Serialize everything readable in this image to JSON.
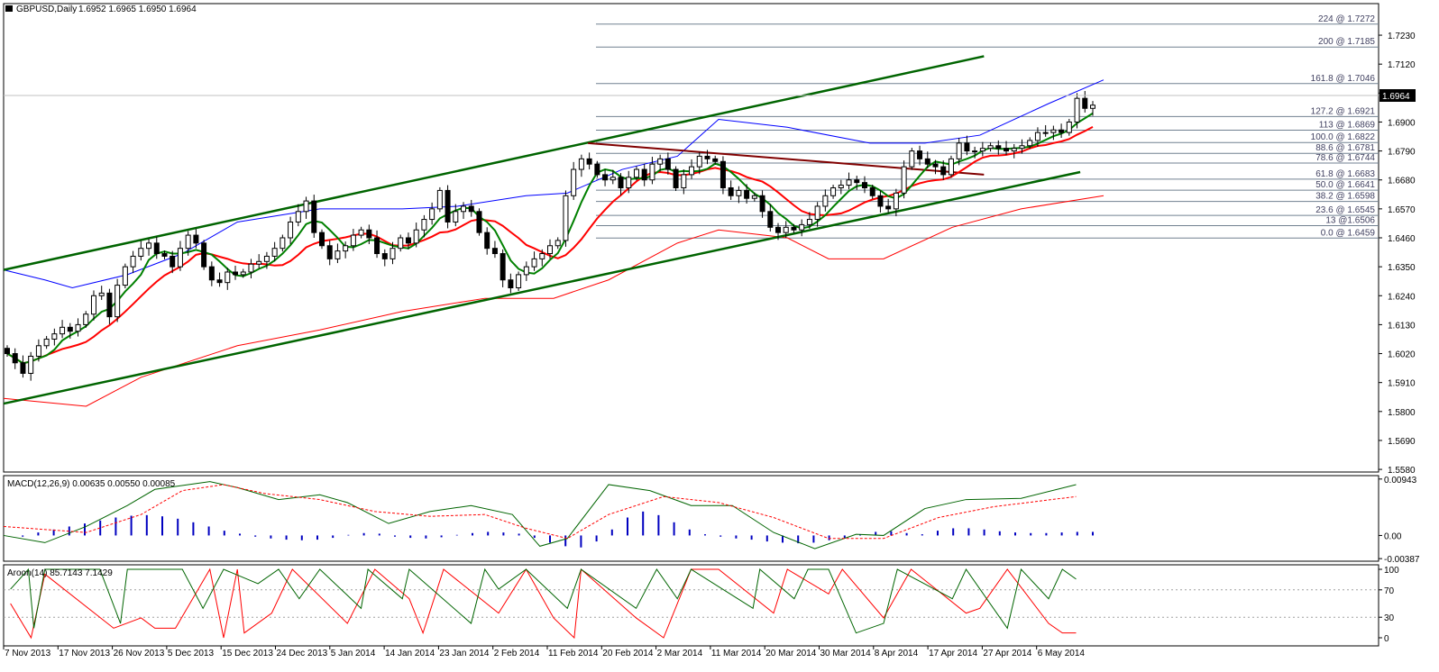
{
  "header": {
    "symbol": "GBPUSD,Daily",
    "ohlc": "1.6952 1.6965 1.6950 1.6964"
  },
  "current_price_label": "1.6964",
  "colors": {
    "channel": "#006400",
    "bollinger_upper": "#0000ff",
    "bollinger_lower": "#ff0000",
    "ma_fast": "#008000",
    "ma_slow": "#ff0000",
    "ma_flat": "#ffff00",
    "trendline_resistance": "#800000",
    "fib_lines": "#708090",
    "macd_histogram": "#0000c0",
    "macd_main": "#006400",
    "macd_signal": "#ff0000",
    "aroon_up": "#006400",
    "aroon_down": "#ff0000"
  },
  "chart_data": [
    {
      "type": "candlestick",
      "panel": "price",
      "y_ticks": [
        "1.7230",
        "1.7120",
        "1.7010",
        "1.6900",
        "1.6790",
        "1.6680",
        "1.6570",
        "1.6460",
        "1.6350",
        "1.6240",
        "1.6130",
        "1.6020",
        "1.5910",
        "1.5800",
        "1.5690",
        "1.5580"
      ],
      "ylim": [
        1.557,
        1.735
      ],
      "x_labels": [
        "7 Nov 2013",
        "17 Nov 2013",
        "26 Nov 2013",
        "5 Dec 2013",
        "15 Dec 2013",
        "24 Dec 2013",
        "5 Jan 2014",
        "14 Jan 2014",
        "23 Jan 2014",
        "2 Feb 2014",
        "11 Feb 2014",
        "20 Feb 2014",
        "2 Mar 2014",
        "11 Mar 2014",
        "20 Mar 2014",
        "30 Mar 2014",
        "8 Apr 2014",
        "17 Apr 2014",
        "27 Apr 2014",
        "6 May 2014"
      ],
      "fibonacci_levels": [
        {
          "label": "224 @ 1.7272",
          "value": 1.7272
        },
        {
          "label": "200 @ 1.7185",
          "value": 1.7185
        },
        {
          "label": "161.8 @ 1.7046",
          "value": 1.7046
        },
        {
          "label": "127.2 @ 1.6921",
          "value": 1.6921
        },
        {
          "label": "113 @ 1.6869",
          "value": 1.6869
        },
        {
          "label": "100.0 @ 1.6822",
          "value": 1.6822
        },
        {
          "label": "88.6 @ 1.6781",
          "value": 1.6781
        },
        {
          "label": "78.6 @ 1.6744",
          "value": 1.6744
        },
        {
          "label": "61.8 @ 1.6683",
          "value": 1.6683
        },
        {
          "label": "50.0 @ 1.6641",
          "value": 1.6641
        },
        {
          "label": "38.2 @ 1.6598",
          "value": 1.6598
        },
        {
          "label": "23.6 @ 1.6545",
          "value": 1.6545
        },
        {
          "label": "13 @1.6506",
          "value": 1.6506
        },
        {
          "label": "0.0 @ 1.6459",
          "value": 1.6459
        }
      ],
      "current_price": 1.6964,
      "closes": [
        1.602,
        1.5985,
        1.5945,
        1.601,
        1.605,
        1.6075,
        1.6095,
        1.612,
        1.6105,
        1.613,
        1.617,
        1.624,
        1.625,
        1.616,
        1.628,
        1.635,
        1.639,
        1.642,
        1.644,
        1.64,
        1.639,
        1.635,
        1.642,
        1.647,
        1.644,
        1.635,
        1.63,
        1.629,
        1.633,
        1.632,
        1.633,
        1.636,
        1.637,
        1.639,
        1.642,
        1.646,
        1.652,
        1.656,
        1.66,
        1.648,
        1.643,
        1.638,
        1.641,
        1.643,
        1.647,
        1.649,
        1.646,
        1.64,
        1.638,
        1.642,
        1.646,
        1.644,
        1.649,
        1.653,
        1.657,
        1.664,
        1.652,
        1.656,
        1.658,
        1.656,
        1.648,
        1.642,
        1.64,
        1.63,
        1.627,
        1.632,
        1.635,
        1.638,
        1.64,
        1.643,
        1.645,
        1.662,
        1.672,
        1.676,
        1.674,
        1.67,
        1.668,
        1.669,
        1.665,
        1.669,
        1.672,
        1.668,
        1.674,
        1.676,
        1.672,
        1.665,
        1.67,
        1.673,
        1.677,
        1.676,
        1.675,
        1.665,
        1.662,
        1.664,
        1.661,
        1.662,
        1.656,
        1.65,
        1.648,
        1.65,
        1.649,
        1.651,
        1.653,
        1.658,
        1.662,
        1.665,
        1.666,
        1.668,
        1.667,
        1.665,
        1.662,
        1.658,
        1.657,
        1.663,
        1.673,
        1.679,
        1.676,
        1.674,
        1.673,
        1.67,
        1.676,
        1.682,
        1.679,
        1.679,
        1.68,
        1.681,
        1.68,
        1.679,
        1.68,
        1.681,
        1.683,
        1.686,
        1.686,
        1.687,
        1.686,
        1.69,
        1.699,
        1.6952,
        1.6964
      ],
      "bollinger_upper_pts": [
        [
          0,
          1.6338
        ],
        [
          0.03,
          1.63
        ],
        [
          0.05,
          1.627
        ],
        [
          0.09,
          1.632
        ],
        [
          0.13,
          1.64
        ],
        [
          0.17,
          1.652
        ],
        [
          0.23,
          1.657
        ],
        [
          0.29,
          1.657
        ],
        [
          0.33,
          1.658
        ],
        [
          0.38,
          1.662
        ],
        [
          0.41,
          1.663
        ],
        [
          0.45,
          1.672
        ],
        [
          0.49,
          1.677
        ],
        [
          0.52,
          1.691
        ],
        [
          0.57,
          1.688
        ],
        [
          0.63,
          1.682
        ],
        [
          0.67,
          1.682
        ],
        [
          0.71,
          1.685
        ],
        [
          0.76,
          1.697
        ],
        [
          0.8,
          1.706
        ]
      ],
      "bollinger_lower_pts": [
        [
          0,
          1.585
        ],
        [
          0.06,
          1.582
        ],
        [
          0.1,
          1.593
        ],
        [
          0.17,
          1.605
        ],
        [
          0.23,
          1.611
        ],
        [
          0.29,
          1.618
        ],
        [
          0.35,
          1.623
        ],
        [
          0.4,
          1.623
        ],
        [
          0.44,
          1.63
        ],
        [
          0.49,
          1.644
        ],
        [
          0.52,
          1.649
        ],
        [
          0.57,
          1.646
        ],
        [
          0.6,
          1.638
        ],
        [
          0.64,
          1.638
        ],
        [
          0.69,
          1.65
        ],
        [
          0.74,
          1.657
        ],
        [
          0.8,
          1.662
        ]
      ],
      "channel_upper": [
        [
          0,
          1.6338
        ],
        [
          0.713,
          1.715
        ]
      ],
      "channel_lower": [
        [
          0,
          1.583
        ],
        [
          0.783,
          1.671
        ]
      ],
      "resistance_line": [
        [
          0.425,
          1.682
        ],
        [
          0.713,
          1.67
        ]
      ]
    },
    {
      "type": "line",
      "panel": "macd",
      "title": "MACD(12,26,9) 0.00635 0.00550 0.00085",
      "y_ticks": [
        "0.00943",
        "0.00",
        "-0.00387"
      ],
      "ylim": [
        -0.0043,
        0.01
      ],
      "histogram": [
        0.0,
        -0.0002,
        0.0005,
        0.001,
        0.0015,
        0.002,
        0.0025,
        0.003,
        0.0033,
        0.0034,
        0.0032,
        0.0028,
        0.0022,
        0.0015,
        0.0008,
        0.0003,
        -0.0002,
        -0.0005,
        -0.0007,
        -0.0008,
        -0.0007,
        -0.0004,
        0.0001,
        0.0004,
        0.0003,
        -0.0002,
        -0.0004,
        -0.0005,
        -0.0003,
        0.0001,
        0.0004,
        0.0006,
        0.0005,
        0.0003,
        -0.0004,
        -0.0012,
        -0.0018,
        -0.002,
        -0.001,
        0.001,
        0.003,
        0.004,
        0.0034,
        0.0022,
        0.001,
        0.0002,
        -0.0002,
        -0.0005,
        -0.0007,
        -0.001,
        -0.0012,
        -0.0013,
        -0.0012,
        -0.0008,
        -0.0004,
        0.0002,
        0.0006,
        0.0007,
        0.0004,
        0.0002,
        0.0008,
        0.0012,
        0.0012,
        0.001,
        0.0007,
        0.0005,
        0.0004,
        0.0004,
        0.0005,
        0.0006,
        0.0006
      ],
      "main_line": [
        [
          0,
          0.0
        ],
        [
          0.03,
          -0.0012
        ],
        [
          0.06,
          0.0015
        ],
        [
          0.09,
          0.005
        ],
        [
          0.11,
          0.0077
        ],
        [
          0.15,
          0.009
        ],
        [
          0.17,
          0.008
        ],
        [
          0.2,
          0.006
        ],
        [
          0.23,
          0.0068
        ],
        [
          0.25,
          0.0055
        ],
        [
          0.28,
          0.002
        ],
        [
          0.31,
          0.004
        ],
        [
          0.34,
          0.005
        ],
        [
          0.37,
          0.0035
        ],
        [
          0.39,
          -0.0018
        ],
        [
          0.41,
          -0.0005
        ],
        [
          0.44,
          0.0085
        ],
        [
          0.47,
          0.0075
        ],
        [
          0.5,
          0.005
        ],
        [
          0.53,
          0.005
        ],
        [
          0.56,
          0.0005
        ],
        [
          0.59,
          -0.0022
        ],
        [
          0.62,
          0.0002
        ],
        [
          0.64,
          0.0
        ],
        [
          0.67,
          0.0045
        ],
        [
          0.7,
          0.006
        ],
        [
          0.74,
          0.0062
        ],
        [
          0.78,
          0.0085
        ]
      ],
      "signal_line": [
        [
          0,
          0.0015
        ],
        [
          0.06,
          0.0005
        ],
        [
          0.1,
          0.0035
        ],
        [
          0.13,
          0.0075
        ],
        [
          0.16,
          0.0085
        ],
        [
          0.19,
          0.007
        ],
        [
          0.23,
          0.006
        ],
        [
          0.27,
          0.004
        ],
        [
          0.31,
          0.0032
        ],
        [
          0.35,
          0.0035
        ],
        [
          0.38,
          0.0012
        ],
        [
          0.41,
          -0.0005
        ],
        [
          0.44,
          0.0035
        ],
        [
          0.48,
          0.0065
        ],
        [
          0.52,
          0.0055
        ],
        [
          0.56,
          0.003
        ],
        [
          0.6,
          -0.0005
        ],
        [
          0.64,
          -0.0005
        ],
        [
          0.68,
          0.003
        ],
        [
          0.72,
          0.0048
        ],
        [
          0.78,
          0.0065
        ]
      ]
    },
    {
      "type": "line",
      "panel": "aroon",
      "title": "Aroon(14) 85.7143 7.1429",
      "y_ticks": [
        "100",
        "70",
        "30",
        "0"
      ],
      "ylim": [
        0,
        100
      ],
      "aroon_up": [
        [
          0.005,
          71
        ],
        [
          0.018,
          100
        ],
        [
          0.022,
          14
        ],
        [
          0.03,
          100
        ],
        [
          0.07,
          100
        ],
        [
          0.085,
          21
        ],
        [
          0.09,
          100
        ],
        [
          0.13,
          100
        ],
        [
          0.145,
          43
        ],
        [
          0.16,
          100
        ],
        [
          0.185,
          79
        ],
        [
          0.2,
          100
        ],
        [
          0.215,
          57
        ],
        [
          0.23,
          100
        ],
        [
          0.26,
          43
        ],
        [
          0.265,
          100
        ],
        [
          0.29,
          57
        ],
        [
          0.295,
          100
        ],
        [
          0.34,
          21
        ],
        [
          0.35,
          100
        ],
        [
          0.36,
          71
        ],
        [
          0.38,
          100
        ],
        [
          0.41,
          43
        ],
        [
          0.42,
          100
        ],
        [
          0.46,
          43
        ],
        [
          0.475,
          100
        ],
        [
          0.49,
          57
        ],
        [
          0.5,
          100
        ],
        [
          0.545,
          43
        ],
        [
          0.55,
          100
        ],
        [
          0.575,
          57
        ],
        [
          0.585,
          100
        ],
        [
          0.6,
          100
        ],
        [
          0.62,
          7
        ],
        [
          0.64,
          21
        ],
        [
          0.65,
          100
        ],
        [
          0.69,
          57
        ],
        [
          0.7,
          100
        ],
        [
          0.73,
          14
        ],
        [
          0.74,
          100
        ],
        [
          0.76,
          57
        ],
        [
          0.77,
          100
        ],
        [
          0.78,
          85.7
        ]
      ],
      "aroon_down": [
        [
          0.005,
          50
        ],
        [
          0.02,
          0
        ],
        [
          0.03,
          93
        ],
        [
          0.08,
          14
        ],
        [
          0.1,
          29
        ],
        [
          0.11,
          14
        ],
        [
          0.125,
          14
        ],
        [
          0.15,
          100
        ],
        [
          0.16,
          0
        ],
        [
          0.17,
          100
        ],
        [
          0.175,
          7
        ],
        [
          0.195,
          36
        ],
        [
          0.21,
          100
        ],
        [
          0.25,
          21
        ],
        [
          0.27,
          100
        ],
        [
          0.295,
          57
        ],
        [
          0.305,
          7
        ],
        [
          0.32,
          100
        ],
        [
          0.36,
          36
        ],
        [
          0.38,
          100
        ],
        [
          0.4,
          29
        ],
        [
          0.415,
          0
        ],
        [
          0.42,
          100
        ],
        [
          0.46,
          29
        ],
        [
          0.48,
          0
        ],
        [
          0.5,
          100
        ],
        [
          0.52,
          100
        ],
        [
          0.56,
          36
        ],
        [
          0.57,
          100
        ],
        [
          0.6,
          64
        ],
        [
          0.61,
          100
        ],
        [
          0.64,
          29
        ],
        [
          0.66,
          100
        ],
        [
          0.7,
          36
        ],
        [
          0.71,
          43
        ],
        [
          0.73,
          100
        ],
        [
          0.76,
          21
        ],
        [
          0.77,
          7
        ],
        [
          0.78,
          7.1
        ]
      ]
    }
  ]
}
